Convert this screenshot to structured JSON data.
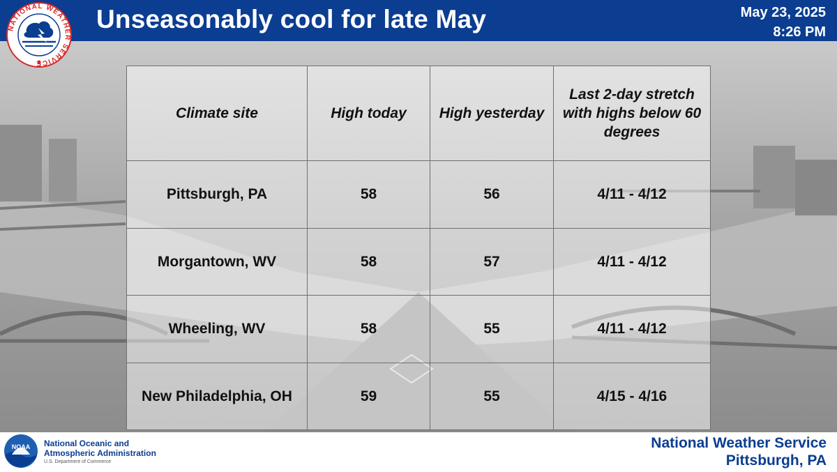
{
  "header": {
    "title": "Unseasonably cool for late May",
    "date": "May 23, 2025",
    "time": "8:26 PM"
  },
  "nws_logo": {
    "ring_text": "NATIONAL WEATHER SERVICE"
  },
  "table": {
    "columns": [
      "Climate site",
      "High today",
      "High yesterday",
      "Last 2-day stretch with highs below 60 degrees"
    ],
    "rows": [
      {
        "site": "Pittsburgh, PA",
        "high_today": "58",
        "high_yesterday": "56",
        "stretch": "4/11 - 4/12"
      },
      {
        "site": "Morgantown, WV",
        "high_today": "58",
        "high_yesterday": "57",
        "stretch": "4/11 - 4/12"
      },
      {
        "site": "Wheeling, WV",
        "high_today": "58",
        "high_yesterday": "55",
        "stretch": "4/11 - 4/12"
      },
      {
        "site": "New Philadelphia, OH",
        "high_today": "59",
        "high_yesterday": "55",
        "stretch": "4/15 - 4/16"
      }
    ]
  },
  "footer": {
    "noaa_logo_text": "NOAA",
    "agency_line1": "National Oceanic and",
    "agency_line2": "Atmospheric Administration",
    "department": "U.S. Department of Commerce",
    "office_line1": "National Weather Service",
    "office_line2": "Pittsburgh, PA"
  },
  "colors": {
    "header_blue": "#0b3d91",
    "nws_red": "#d62828",
    "text_dark": "#111111"
  },
  "icons": {
    "nws": "nws-logo-icon",
    "noaa": "noaa-logo-icon"
  }
}
